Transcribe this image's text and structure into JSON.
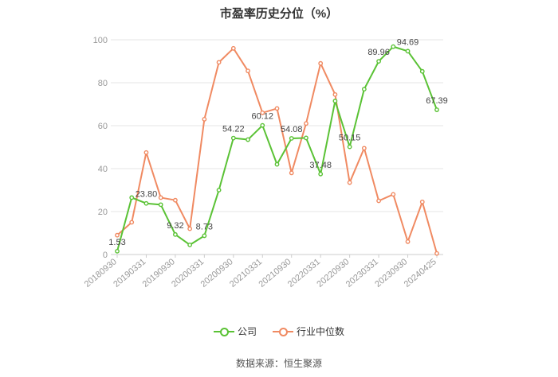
{
  "chart_data": {
    "type": "line",
    "title": "市盈率历史分位（%）",
    "ylim": [
      0,
      100
    ],
    "yticks": [
      0,
      20,
      40,
      60,
      80,
      100
    ],
    "grid": true,
    "x_tick_labels": [
      "20180930",
      "20190331",
      "20190930",
      "20200331",
      "20200930",
      "20210331",
      "20210930",
      "20220331",
      "20220930",
      "20230331",
      "20230930",
      "20240425"
    ],
    "x_tick_positions": [
      0,
      2,
      4,
      6,
      8,
      10,
      12,
      14,
      16,
      18,
      20,
      22
    ],
    "series": [
      {
        "name": "公司",
        "color": "#5ac235",
        "values": [
          1.53,
          26.5,
          23.8,
          23.2,
          9.32,
          4.5,
          8.73,
          30.0,
          54.22,
          53.5,
          60.12,
          42.0,
          54.08,
          54.3,
          37.48,
          71.5,
          50.15,
          77.0,
          89.96,
          96.8,
          94.69,
          85.3,
          67.39
        ],
        "labels": {
          "0": "1.53",
          "2": "23.80",
          "4": "9.32",
          "6": "8.73",
          "8": "54.22",
          "10": "60.12",
          "12": "54.08",
          "14": "37.48",
          "16": "50.15",
          "18": "89.96",
          "20": "94.69",
          "22": "67.39"
        }
      },
      {
        "name": "行业中位数",
        "color": "#f08a62",
        "values": [
          9.0,
          15.0,
          47.5,
          26.5,
          25.3,
          12.0,
          63.0,
          89.5,
          96.0,
          85.5,
          66.0,
          68.0,
          38.0,
          61.0,
          89.0,
          74.5,
          33.5,
          49.5,
          25.0,
          28.0,
          6.0,
          24.5,
          0.5
        ]
      }
    ]
  },
  "source": "数据来源：恒生聚源"
}
